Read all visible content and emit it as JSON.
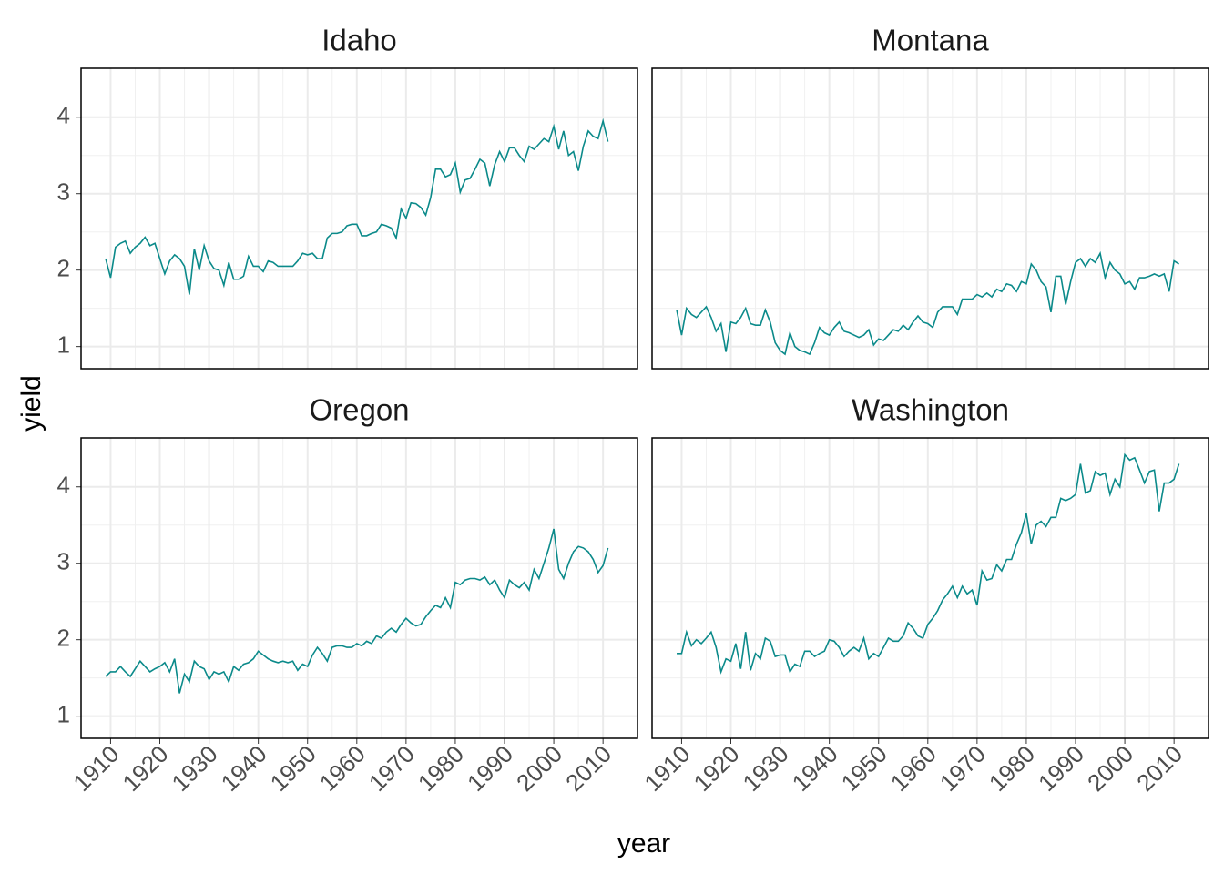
{
  "chart_data": {
    "type": "line",
    "xlabel": "year",
    "ylabel": "yield",
    "color": "#0b8a8a",
    "grid": true,
    "minor_grid": true,
    "xlim": [
      1904,
      2017
    ],
    "ylim": [
      0.71,
      4.64
    ],
    "xticks": [
      1910,
      1920,
      1930,
      1940,
      1950,
      1960,
      1970,
      1980,
      1990,
      2000,
      2010
    ],
    "yticks": [
      1,
      2,
      3,
      4
    ],
    "x": [
      1909,
      1910,
      1911,
      1912,
      1913,
      1914,
      1915,
      1916,
      1917,
      1918,
      1919,
      1920,
      1921,
      1922,
      1923,
      1924,
      1925,
      1926,
      1927,
      1928,
      1929,
      1930,
      1931,
      1932,
      1933,
      1934,
      1935,
      1936,
      1937,
      1938,
      1939,
      1940,
      1941,
      1942,
      1943,
      1944,
      1945,
      1946,
      1947,
      1948,
      1949,
      1950,
      1951,
      1952,
      1953,
      1954,
      1955,
      1956,
      1957,
      1958,
      1959,
      1960,
      1961,
      1962,
      1963,
      1964,
      1965,
      1966,
      1967,
      1968,
      1969,
      1970,
      1971,
      1972,
      1973,
      1974,
      1975,
      1976,
      1977,
      1978,
      1979,
      1980,
      1981,
      1982,
      1983,
      1984,
      1985,
      1986,
      1987,
      1988,
      1989,
      1990,
      1991,
      1992,
      1993,
      1994,
      1995,
      1996,
      1997,
      1998,
      1999,
      2000,
      2001,
      2002,
      2003,
      2004,
      2005,
      2006,
      2007,
      2008,
      2009,
      2010,
      2011
    ],
    "panels": [
      {
        "title": "Idaho",
        "values": [
          2.15,
          1.9,
          2.3,
          2.35,
          2.38,
          2.22,
          2.3,
          2.35,
          2.43,
          2.32,
          2.35,
          2.15,
          1.95,
          2.12,
          2.2,
          2.15,
          2.05,
          1.68,
          2.28,
          2.0,
          2.32,
          2.12,
          2.02,
          2.0,
          1.8,
          2.1,
          1.88,
          1.88,
          1.92,
          2.18,
          2.05,
          2.05,
          1.98,
          2.12,
          2.1,
          2.05,
          2.05,
          2.05,
          2.05,
          2.12,
          2.22,
          2.2,
          2.22,
          2.15,
          2.15,
          2.42,
          2.48,
          2.48,
          2.5,
          2.58,
          2.6,
          2.6,
          2.45,
          2.45,
          2.48,
          2.5,
          2.6,
          2.58,
          2.55,
          2.42,
          2.8,
          2.68,
          2.88,
          2.87,
          2.82,
          2.72,
          2.95,
          3.32,
          3.32,
          3.22,
          3.25,
          3.4,
          3.02,
          3.18,
          3.2,
          3.32,
          3.45,
          3.4,
          3.1,
          3.38,
          3.55,
          3.42,
          3.6,
          3.6,
          3.5,
          3.42,
          3.62,
          3.58,
          3.65,
          3.72,
          3.68,
          3.88,
          3.58,
          3.82,
          3.5,
          3.55,
          3.3,
          3.62,
          3.82,
          3.75,
          3.72,
          3.95,
          3.68
        ]
      },
      {
        "title": "Montana",
        "values": [
          1.48,
          1.15,
          1.5,
          1.42,
          1.38,
          1.45,
          1.52,
          1.38,
          1.2,
          1.3,
          0.93,
          1.32,
          1.3,
          1.38,
          1.5,
          1.3,
          1.28,
          1.28,
          1.48,
          1.32,
          1.05,
          0.95,
          0.9,
          1.18,
          1.0,
          0.95,
          0.93,
          0.9,
          1.05,
          1.25,
          1.18,
          1.15,
          1.25,
          1.32,
          1.2,
          1.18,
          1.15,
          1.12,
          1.15,
          1.22,
          1.02,
          1.1,
          1.08,
          1.15,
          1.22,
          1.2,
          1.28,
          1.22,
          1.32,
          1.4,
          1.32,
          1.3,
          1.25,
          1.45,
          1.52,
          1.52,
          1.52,
          1.42,
          1.62,
          1.62,
          1.62,
          1.68,
          1.65,
          1.7,
          1.65,
          1.75,
          1.72,
          1.82,
          1.8,
          1.72,
          1.85,
          1.82,
          2.08,
          2.0,
          1.85,
          1.78,
          1.45,
          1.92,
          1.92,
          1.55,
          1.85,
          2.1,
          2.15,
          2.05,
          2.15,
          2.1,
          2.22,
          1.9,
          2.1,
          2.0,
          1.95,
          1.82,
          1.85,
          1.75,
          1.9,
          1.9,
          1.92,
          1.95,
          1.92,
          1.95,
          1.72,
          2.12,
          2.08
        ]
      },
      {
        "title": "Oregon",
        "values": [
          1.52,
          1.58,
          1.58,
          1.65,
          1.58,
          1.52,
          1.62,
          1.72,
          1.65,
          1.58,
          1.62,
          1.65,
          1.7,
          1.58,
          1.75,
          1.3,
          1.55,
          1.45,
          1.72,
          1.65,
          1.62,
          1.48,
          1.58,
          1.55,
          1.58,
          1.45,
          1.65,
          1.6,
          1.68,
          1.7,
          1.75,
          1.85,
          1.8,
          1.75,
          1.72,
          1.7,
          1.72,
          1.7,
          1.72,
          1.6,
          1.68,
          1.65,
          1.8,
          1.9,
          1.82,
          1.72,
          1.9,
          1.92,
          1.92,
          1.9,
          1.9,
          1.95,
          1.92,
          1.98,
          1.95,
          2.05,
          2.02,
          2.1,
          2.15,
          2.1,
          2.2,
          2.28,
          2.22,
          2.18,
          2.2,
          2.3,
          2.38,
          2.45,
          2.42,
          2.55,
          2.42,
          2.75,
          2.72,
          2.78,
          2.8,
          2.8,
          2.78,
          2.82,
          2.72,
          2.78,
          2.65,
          2.55,
          2.78,
          2.72,
          2.68,
          2.75,
          2.65,
          2.92,
          2.8,
          3.0,
          3.2,
          3.45,
          2.92,
          2.8,
          3.0,
          3.15,
          3.22,
          3.2,
          3.15,
          3.05,
          2.88,
          2.97,
          3.2
        ]
      },
      {
        "title": "Washington",
        "values": [
          1.82,
          1.82,
          2.1,
          1.92,
          2.0,
          1.95,
          2.02,
          2.1,
          1.9,
          1.58,
          1.75,
          1.72,
          1.95,
          1.62,
          2.1,
          1.6,
          1.82,
          1.75,
          2.02,
          1.98,
          1.78,
          1.8,
          1.8,
          1.58,
          1.68,
          1.65,
          1.85,
          1.85,
          1.78,
          1.82,
          1.85,
          2.0,
          1.98,
          1.9,
          1.78,
          1.85,
          1.9,
          1.85,
          2.02,
          1.75,
          1.82,
          1.78,
          1.9,
          2.02,
          1.98,
          1.98,
          2.05,
          2.22,
          2.15,
          2.05,
          2.02,
          2.2,
          2.28,
          2.38,
          2.52,
          2.6,
          2.7,
          2.55,
          2.7,
          2.6,
          2.65,
          2.45,
          2.9,
          2.78,
          2.8,
          2.98,
          2.9,
          3.05,
          3.05,
          3.25,
          3.4,
          3.65,
          3.25,
          3.5,
          3.55,
          3.48,
          3.6,
          3.6,
          3.85,
          3.82,
          3.85,
          3.9,
          4.3,
          3.92,
          3.95,
          4.2,
          4.15,
          4.18,
          3.9,
          4.1,
          4.0,
          4.42,
          4.35,
          4.38,
          4.22,
          4.05,
          4.2,
          4.22,
          3.68,
          4.05,
          4.05,
          4.1,
          4.3
        ]
      }
    ]
  }
}
